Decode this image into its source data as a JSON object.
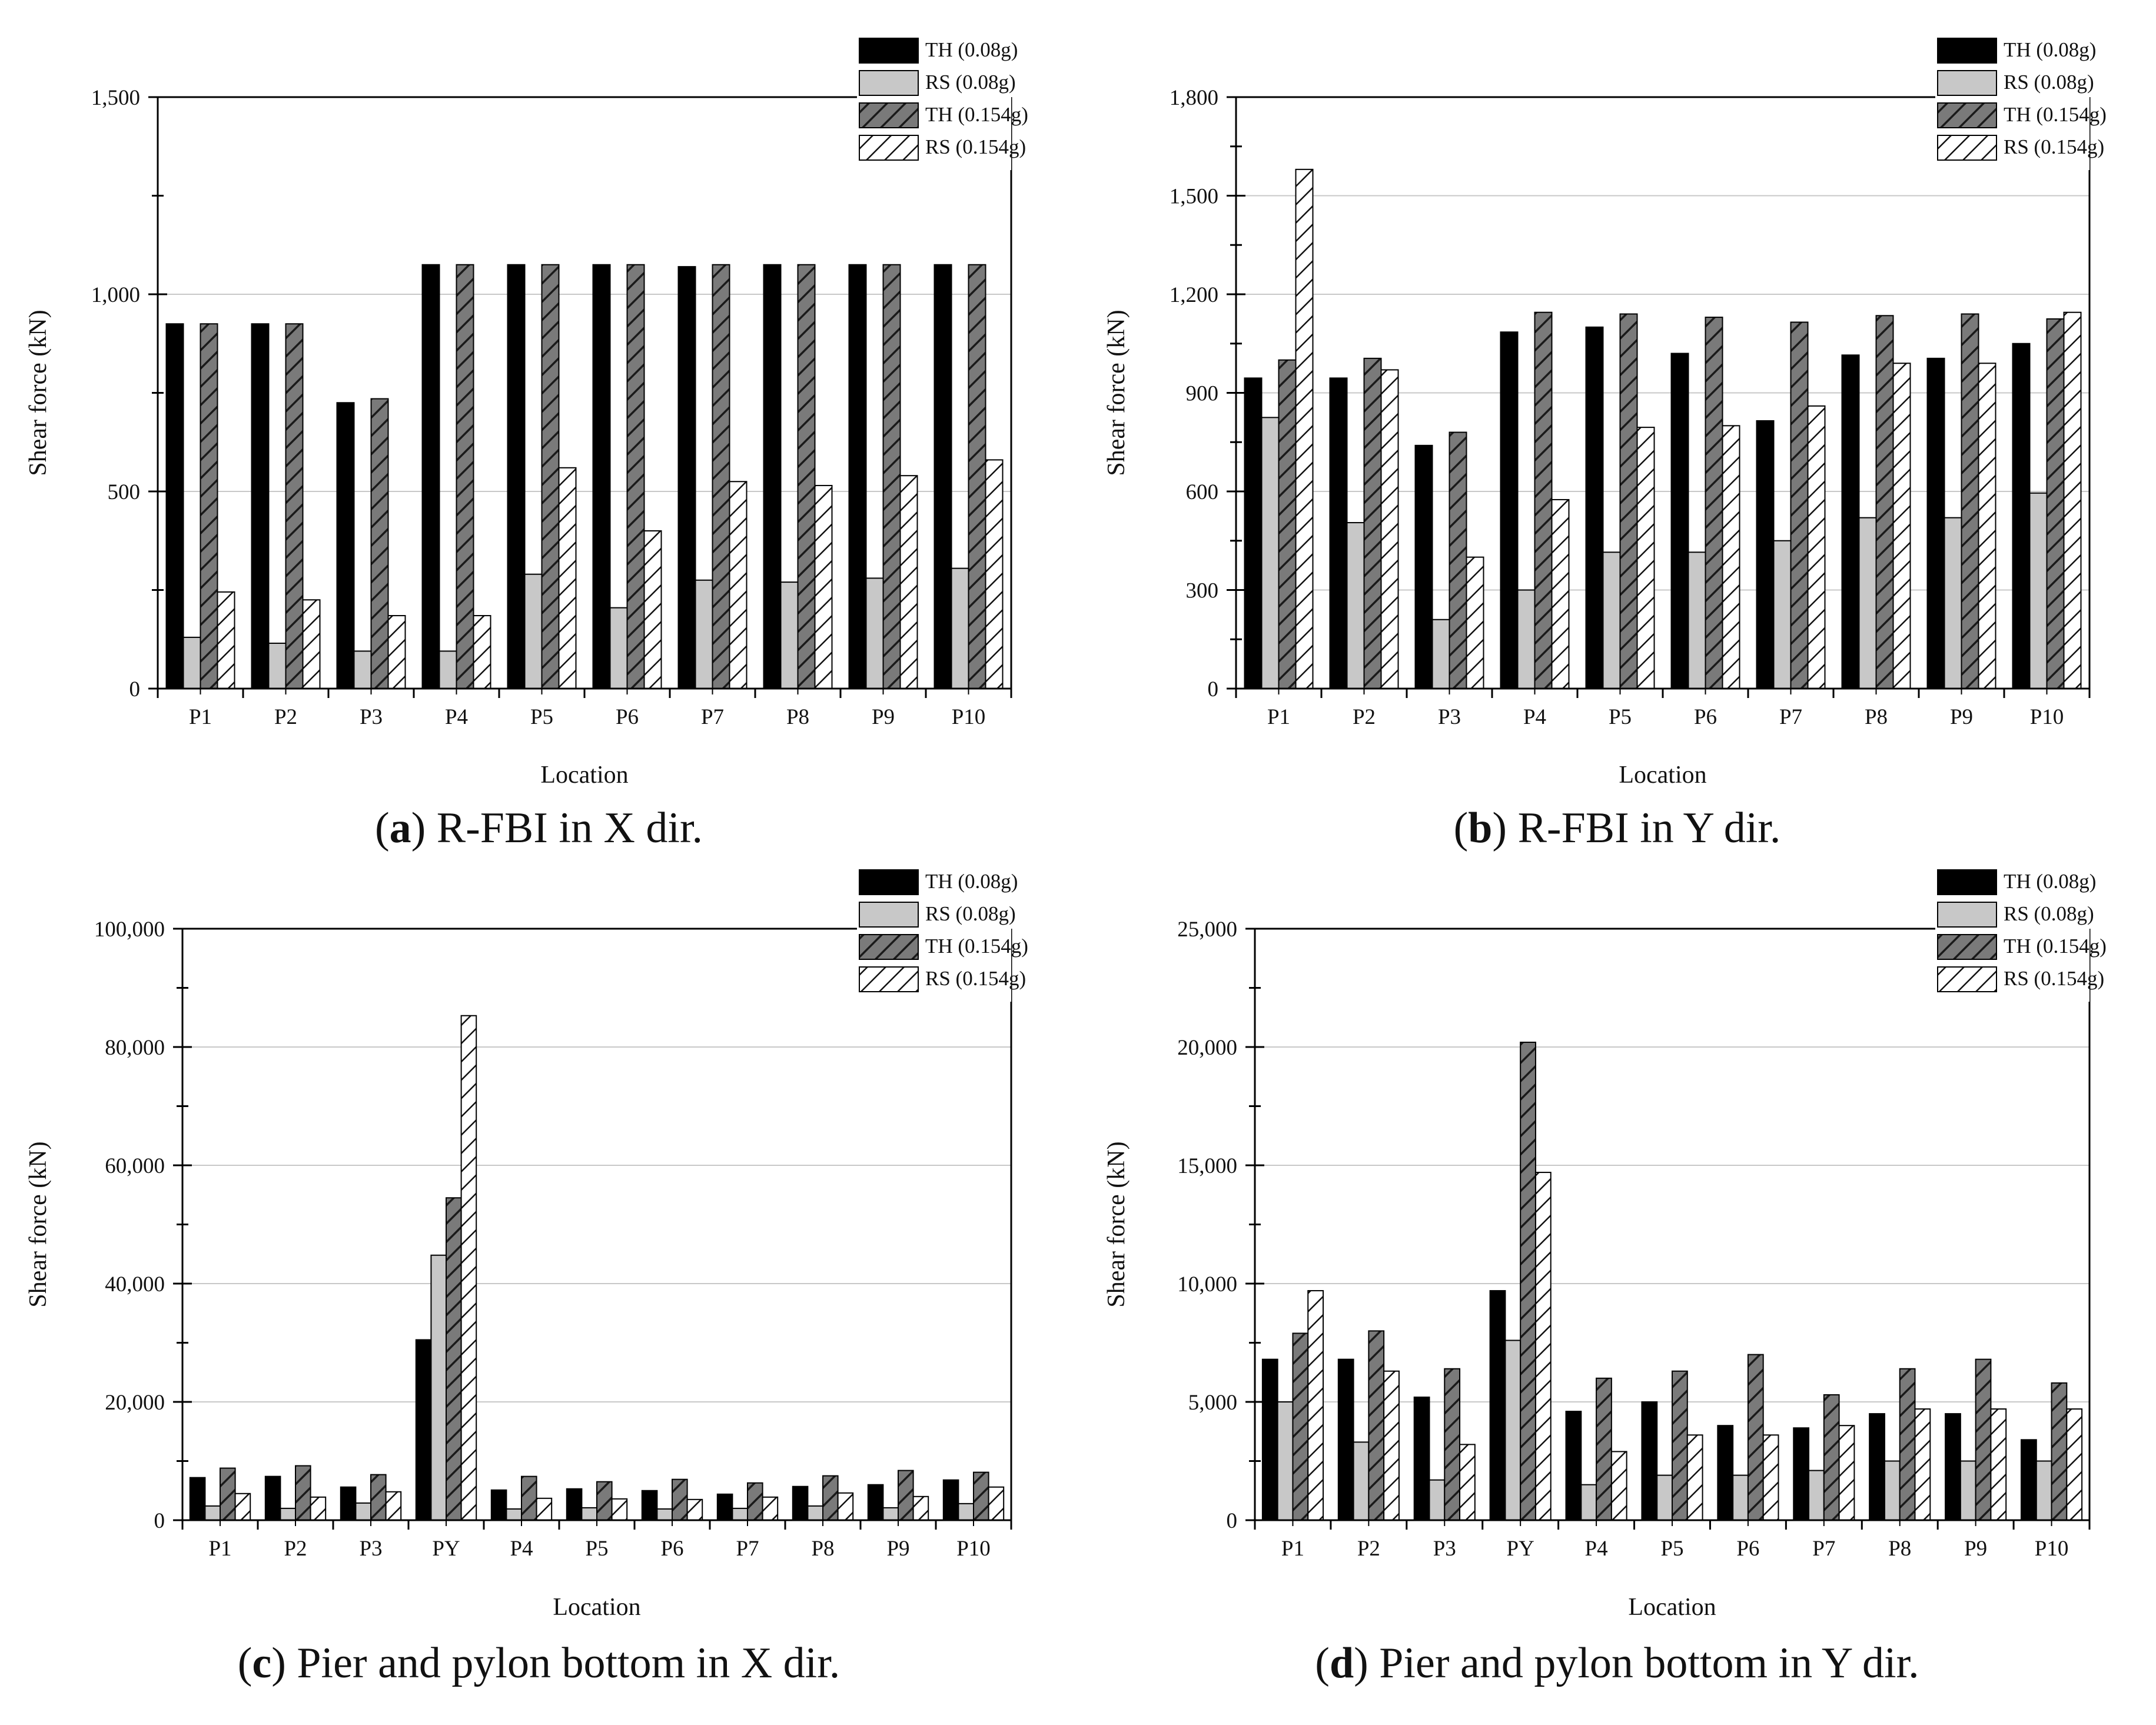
{
  "legend": [
    "TH (0.08g)",
    "RS (0.08g)",
    "TH (0.154g)",
    "RS (0.154g)"
  ],
  "colors": {
    "th008": "#000000",
    "rs008": "#c8c8c8",
    "th0154": "#7a7a7a",
    "rs0154": "#ffffff",
    "grid": "#c8c8c8",
    "axis": "#000000"
  },
  "panels": [
    {
      "letter": "a",
      "caption": " R-FBI in X dir."
    },
    {
      "letter": "b",
      "caption": " R-FBI in Y dir."
    },
    {
      "letter": "c",
      "caption": " Pier and pylon bottom in X dir."
    },
    {
      "letter": "d",
      "caption": " Pier and pylon bottom in Y dir."
    }
  ],
  "chart_data": [
    {
      "type": "bar",
      "title": "(a) R-FBI in X dir.",
      "xlabel": "Location",
      "ylabel": "Shear force (kN)",
      "ylim": [
        0,
        1500
      ],
      "yticks": [
        0,
        500,
        1000,
        1500
      ],
      "ytick_labels": [
        "0",
        "500",
        "1,000",
        "1,500"
      ],
      "minor_step": 250,
      "grid": true,
      "legend_position": "top-right",
      "categories": [
        "P1",
        "P2",
        "P3",
        "P4",
        "P5",
        "P6",
        "P7",
        "P8",
        "P9",
        "P10"
      ],
      "series": [
        {
          "name": "TH (0.08g)",
          "values": [
            925,
            925,
            725,
            1075,
            1075,
            1075,
            1070,
            1075,
            1075,
            1075
          ]
        },
        {
          "name": "RS (0.08g)",
          "values": [
            130,
            115,
            95,
            95,
            290,
            205,
            275,
            270,
            280,
            305
          ]
        },
        {
          "name": "TH (0.154g)",
          "values": [
            925,
            925,
            735,
            1075,
            1075,
            1075,
            1075,
            1075,
            1075,
            1075
          ]
        },
        {
          "name": "RS (0.154g)",
          "values": [
            245,
            225,
            185,
            185,
            560,
            400,
            525,
            515,
            540,
            580
          ]
        }
      ]
    },
    {
      "type": "bar",
      "title": "(b) R-FBI in Y dir.",
      "xlabel": "Location",
      "ylabel": "Shear force (kN)",
      "ylim": [
        0,
        1800
      ],
      "yticks": [
        0,
        300,
        600,
        900,
        1200,
        1500,
        1800
      ],
      "ytick_labels": [
        "0",
        "300",
        "600",
        "900",
        "1,200",
        "1,500",
        "1,800"
      ],
      "minor_step": 150,
      "grid": true,
      "legend_position": "top-right",
      "categories": [
        "P1",
        "P2",
        "P3",
        "P4",
        "P5",
        "P6",
        "P7",
        "P8",
        "P9",
        "P10"
      ],
      "series": [
        {
          "name": "TH (0.08g)",
          "values": [
            945,
            945,
            740,
            1085,
            1100,
            1020,
            815,
            1015,
            1005,
            1050
          ]
        },
        {
          "name": "RS (0.08g)",
          "values": [
            825,
            505,
            210,
            300,
            415,
            415,
            450,
            520,
            520,
            595
          ]
        },
        {
          "name": "TH (0.154g)",
          "values": [
            1000,
            1005,
            780,
            1145,
            1140,
            1130,
            1115,
            1135,
            1140,
            1125
          ]
        },
        {
          "name": "RS (0.154g)",
          "values": [
            1580,
            970,
            400,
            575,
            795,
            800,
            860,
            990,
            990,
            1145
          ]
        }
      ]
    },
    {
      "type": "bar",
      "title": "(c) Pier and pylon bottom in X dir.",
      "xlabel": "Location",
      "ylabel": "Shear force (kN)",
      "ylim": [
        0,
        100000
      ],
      "yticks": [
        0,
        20000,
        40000,
        60000,
        80000,
        100000
      ],
      "ytick_labels": [
        "0",
        "20,000",
        "40,000",
        "60,000",
        "80,000",
        "100,000"
      ],
      "minor_step": 10000,
      "grid": true,
      "legend_position": "top-right",
      "categories": [
        "P1",
        "P2",
        "P3",
        "PY",
        "P4",
        "P5",
        "P6",
        "P7",
        "P8",
        "P9",
        "P10"
      ],
      "series": [
        {
          "name": "TH (0.08g)",
          "values": [
            7200,
            7400,
            5600,
            30500,
            5100,
            5300,
            5000,
            4400,
            5700,
            6000,
            6800
          ]
        },
        {
          "name": "RS (0.08g)",
          "values": [
            2400,
            2000,
            2900,
            44800,
            1900,
            2100,
            1900,
            2000,
            2400,
            2100,
            2800
          ]
        },
        {
          "name": "TH (0.154g)",
          "values": [
            8800,
            9200,
            7700,
            54500,
            7400,
            6500,
            6900,
            6300,
            7500,
            8400,
            8100
          ]
        },
        {
          "name": "RS (0.154g)",
          "values": [
            4500,
            3900,
            4800,
            85300,
            3700,
            3600,
            3500,
            3900,
            4600,
            4000,
            5600
          ]
        }
      ]
    },
    {
      "type": "bar",
      "title": "(d) Pier and pylon bottom in Y dir.",
      "xlabel": "Location",
      "ylabel": "Shear force (kN)",
      "ylim": [
        0,
        25000
      ],
      "yticks": [
        0,
        5000,
        10000,
        15000,
        20000,
        25000
      ],
      "ytick_labels": [
        "0",
        "5,000",
        "10,000",
        "15,000",
        "20,000",
        "25,000"
      ],
      "minor_step": 2500,
      "grid": true,
      "legend_position": "top-right",
      "categories": [
        "P1",
        "P2",
        "P3",
        "PY",
        "P4",
        "P5",
        "P6",
        "P7",
        "P8",
        "P9",
        "P10"
      ],
      "series": [
        {
          "name": "TH (0.08g)",
          "values": [
            6800,
            6800,
            5200,
            9700,
            4600,
            5000,
            4000,
            3900,
            4500,
            4500,
            3400
          ]
        },
        {
          "name": "RS (0.08g)",
          "values": [
            5000,
            3300,
            1700,
            7600,
            1500,
            1900,
            1900,
            2100,
            2500,
            2500,
            2500
          ]
        },
        {
          "name": "TH (0.154g)",
          "values": [
            7900,
            8000,
            6400,
            20200,
            6000,
            6300,
            7000,
            5300,
            6400,
            6800,
            5800
          ]
        },
        {
          "name": "RS (0.154g)",
          "values": [
            9700,
            6300,
            3200,
            14700,
            2900,
            3600,
            3600,
            4000,
            4700,
            4700,
            4700
          ]
        }
      ]
    }
  ]
}
